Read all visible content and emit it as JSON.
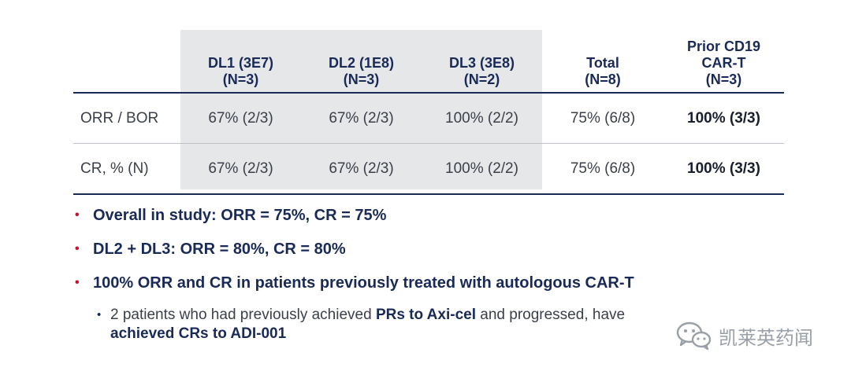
{
  "table": {
    "headers": [
      {
        "line1": "",
        "line2": "",
        "line3": ""
      },
      {
        "line1": "DL1 (3E7)",
        "line2": "(N=3)",
        "line3": ""
      },
      {
        "line1": "DL2 (1E8)",
        "line2": "(N=3)",
        "line3": ""
      },
      {
        "line1": "DL3 (3E8)",
        "line2": "(N=2)",
        "line3": ""
      },
      {
        "line1": "Total",
        "line2": "(N=8)",
        "line3": ""
      },
      {
        "line1": "Prior CD19",
        "line2": "CAR-T",
        "line3": "(N=3)"
      }
    ],
    "rows": [
      {
        "label": "ORR / BOR",
        "cells": [
          "67% (2/3)",
          "67% (2/3)",
          "100% (2/2)",
          "75% (6/8)",
          "100% (3/3)"
        ]
      },
      {
        "label": "CR, % (N)",
        "cells": [
          "67% (2/3)",
          "67% (2/3)",
          "100% (2/2)",
          "75% (6/8)",
          "100% (3/3)"
        ]
      }
    ]
  },
  "bullets": [
    "Overall in study:  ORR = 75%, CR = 75%",
    "DL2 + DL3:  ORR = 80%, CR = 80%",
    "100% ORR and CR in patients previously treated with autologous CAR-T"
  ],
  "subbullet": {
    "part1": "2 patients who had previously achieved ",
    "bold1": "PRs to Axi-cel",
    "part2": " and progressed, have",
    "bold2": "achieved CRs to ADI-001"
  },
  "watermark": {
    "text": "凯莱英药闻",
    "icon": "wechat-icon"
  },
  "colors": {
    "header_text": "#1a2a57",
    "bullet_marker": "#c8102e",
    "shade": "#e6e7e9"
  }
}
